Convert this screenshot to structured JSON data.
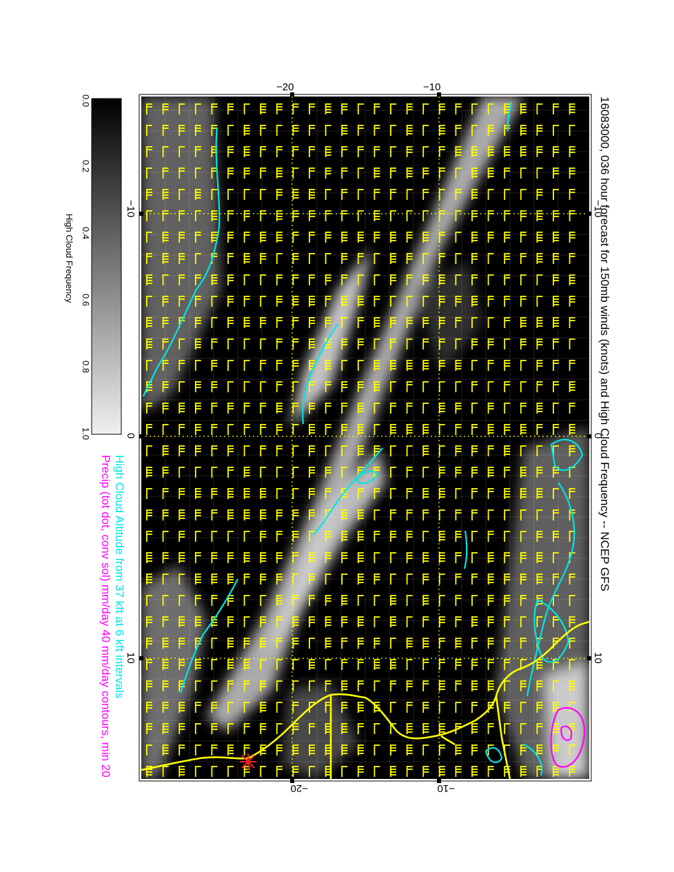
{
  "title": "16083000, 036 hour forecast for 150mb winds (knots) and High Cloud Frequency -- NCEP GFS",
  "captions": {
    "cloud_altitude": "High Cloud Altitude from 37 kft at 6 kft intervals",
    "precip": "Precip (tot dot, conv sol) mm/day 40 mm/day contours, min 20"
  },
  "colorbar": {
    "title": "High Cloud Frequency",
    "ticks": [
      "0.0",
      "0.2",
      "0.4",
      "0.6",
      "0.8",
      "1.0"
    ]
  },
  "axes": {
    "top_ticks": [
      "−20",
      "−10"
    ],
    "bottom_ticks": [
      "−20",
      "−10"
    ],
    "left_ticks": [
      "−10",
      "0",
      "10"
    ],
    "right_ticks": [
      "−10",
      "0",
      "10"
    ]
  },
  "colors": {
    "wind_barbs": "#ffff00",
    "coastline": "#ffff00",
    "cloud_altitude_contours": "#00e5e5",
    "precip_contours": "#ff00ff",
    "gridlines": "#ffff00",
    "background": "#000000",
    "storm_marker": "#ff0000"
  },
  "marker": {
    "symbol": "star-icon"
  }
}
